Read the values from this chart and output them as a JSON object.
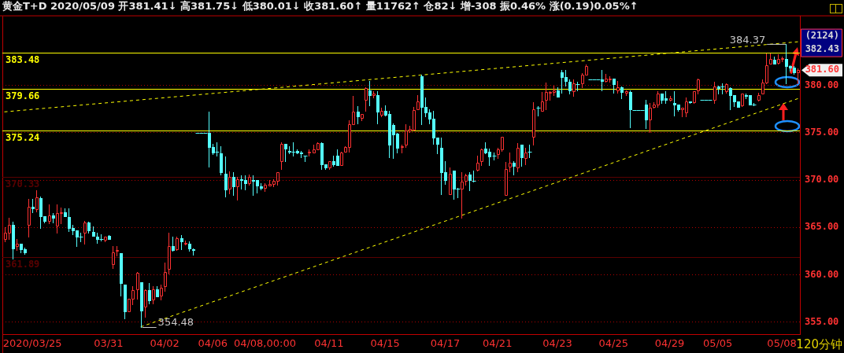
{
  "chart_data": {
    "type": "candlestick",
    "title": "黄金T+D 2020/05/09 开381.41↓ 高381.75↓ 低380.01↓ 收381.60↑ 量11762↑ 仓82↓ 增-308 振0.46% 涨(0.19)0.05%↑",
    "categories": [
      null,
      null,
      null,
      null,
      null,
      null,
      null,
      "2020/03/25",
      null,
      null,
      null,
      null,
      null,
      null,
      null,
      null,
      null,
      null,
      null,
      null,
      null,
      null,
      null,
      null,
      null,
      null,
      "03/31",
      null,
      null,
      null,
      null,
      null,
      null,
      null,
      null,
      null,
      null,
      null,
      null,
      null,
      "04/02",
      null,
      null,
      null,
      null,
      null,
      null,
      null,
      null,
      null,
      null,
      null,
      "04/06",
      null,
      null,
      null,
      null,
      null,
      null,
      null,
      null,
      null,
      null,
      null,
      null,
      "04/08,00:00",
      null,
      null,
      null,
      null,
      null,
      null,
      null,
      null,
      null,
      null,
      null,
      null,
      null,
      null,
      null,
      "04/11",
      null,
      null,
      null,
      null,
      null,
      null,
      null,
      null,
      null,
      null,
      null,
      null,
      null,
      "04/15",
      null,
      null,
      null,
      null,
      null,
      null,
      null,
      null,
      null,
      null,
      null,
      null,
      null,
      null,
      "04/17",
      null,
      null,
      null,
      null,
      null,
      null,
      null,
      null,
      null,
      null,
      null,
      null,
      "04/21",
      null,
      null,
      null,
      null,
      null,
      null,
      null,
      null,
      null,
      null,
      null,
      null,
      null,
      null,
      "04/23",
      null,
      null,
      null,
      null,
      null,
      null,
      null,
      null,
      null,
      null,
      null,
      null,
      null,
      "04/25",
      null,
      null,
      null,
      null,
      null,
      null,
      null,
      null,
      null,
      null,
      null,
      null,
      null,
      "04/29",
      null,
      null,
      null,
      null,
      null,
      null,
      null,
      null,
      null,
      null,
      null,
      "05/05",
      null,
      null,
      null,
      null,
      null,
      null,
      null,
      null,
      null,
      null,
      null,
      null,
      null,
      null,
      null,
      "05/08",
      null,
      null,
      null,
      null
    ],
    "ohlc": [
      [
        363.8,
        365.0,
        363.5,
        364.4
      ],
      [
        364.4,
        366.0,
        363.8,
        365.3
      ],
      [
        365.3,
        365.6,
        361.7,
        362.8
      ],
      [
        363.0,
        363.8,
        362.6,
        363.3
      ],
      [
        363.3,
        363.3,
        362.4,
        362.7
      ],
      [
        362.7,
        362.9,
        362.2,
        362.4
      ],
      [
        365.3,
        368.0,
        364.0,
        367.2
      ],
      [
        367.2,
        368.0,
        366.6,
        367.0
      ],
      [
        366.9,
        368.9,
        366.7,
        368.2
      ],
      [
        368.1,
        368.3,
        364.9,
        366.2
      ],
      [
        366.2,
        366.2,
        365.5,
        365.7
      ],
      [
        365.7,
        367.4,
        365.4,
        366.3
      ],
      [
        366.3,
        366.5,
        365.5,
        366.0
      ],
      [
        365.2,
        367.4,
        364.4,
        366.5
      ],
      [
        366.5,
        367.1,
        365.4,
        366.6
      ],
      [
        366.6,
        367.0,
        366.2,
        366.2
      ],
      [
        366.1,
        367.0,
        364.6,
        364.9
      ],
      [
        364.9,
        365.3,
        364.3,
        364.7
      ],
      [
        364.7,
        364.7,
        363.0,
        364.0
      ],
      [
        364.0,
        364.4,
        363.5,
        364.0
      ],
      [
        364.4,
        365.7,
        363.3,
        365.5
      ],
      [
        365.5,
        365.6,
        364.4,
        364.7
      ],
      [
        364.5,
        365.1,
        364.1,
        364.1
      ],
      [
        364.0,
        364.4,
        363.4,
        363.8
      ],
      [
        363.8,
        364.3,
        363.6,
        363.8
      ],
      [
        363.7,
        364.0,
        363.5,
        364.0
      ],
      [
        364.1,
        364.2,
        363.8,
        363.8
      ],
      [
        361.1,
        363.0,
        360.7,
        362.4
      ],
      [
        362.5,
        363.0,
        362.0,
        362.6
      ],
      [
        362.3,
        362.3,
        357.8,
        359.1
      ],
      [
        359.0,
        359.0,
        355.4,
        356.1
      ],
      [
        356.1,
        357.5,
        356.1,
        357.5
      ],
      [
        357.5,
        358.8,
        356.9,
        358.4
      ],
      [
        358.5,
        360.3,
        357.5,
        360.2
      ],
      [
        359.2,
        359.2,
        354.48,
        356.2
      ],
      [
        356.6,
        358.5,
        355.6,
        358.4
      ],
      [
        358.4,
        359.1,
        357.0,
        357.3
      ],
      [
        357.4,
        358.8,
        357.0,
        358.5
      ],
      [
        358.5,
        358.8,
        357.7,
        357.7
      ],
      [
        357.8,
        359.0,
        357.4,
        358.6
      ],
      [
        358.8,
        361.3,
        358.3,
        360.3
      ],
      [
        360.6,
        364.4,
        360.1,
        363.0
      ],
      [
        363.0,
        364.0,
        362.5,
        362.6
      ],
      [
        362.7,
        364.0,
        362.6,
        363.9
      ],
      [
        363.9,
        364.2,
        362.7,
        363.5
      ],
      [
        363.3,
        363.6,
        363.2,
        363.4
      ],
      [
        363.3,
        363.5,
        362.5,
        362.8
      ],
      [
        362.7,
        362.8,
        362.1,
        362.6
      ],
      [
        375.0,
        375.0,
        375.0,
        375.0
      ],
      [
        375.0,
        375.0,
        375.0,
        375.0
      ],
      [
        375.0,
        375.0,
        375.0,
        375.0
      ],
      [
        375.0,
        377.2,
        371.4,
        373.5
      ],
      [
        373.5,
        373.8,
        372.7,
        372.9
      ],
      [
        373.0,
        374.0,
        372.6,
        373.0
      ],
      [
        372.8,
        373.6,
        370.6,
        370.8
      ],
      [
        370.7,
        372.5,
        368.3,
        369.0
      ],
      [
        369.1,
        370.9,
        368.6,
        370.3
      ],
      [
        370.3,
        370.8,
        368.4,
        369.3
      ],
      [
        369.3,
        370.3,
        367.9,
        370.1
      ],
      [
        370.1,
        370.5,
        369.1,
        370.0
      ],
      [
        370.0,
        370.5,
        369.0,
        369.7
      ],
      [
        369.7,
        370.6,
        369.5,
        370.3
      ],
      [
        370.0,
        370.5,
        368.4,
        369.9
      ],
      [
        370.0,
        370.0,
        368.7,
        369.4
      ],
      [
        369.3,
        369.7,
        369.0,
        369.2
      ],
      [
        369.2,
        369.7,
        368.8,
        369.5
      ],
      [
        369.4,
        370.0,
        369.4,
        369.6
      ],
      [
        369.6,
        370.1,
        369.3,
        369.9
      ],
      [
        369.9,
        370.8,
        369.5,
        370.8
      ],
      [
        372.0,
        374.0,
        371.2,
        373.8
      ],
      [
        373.8,
        373.8,
        372.0,
        373.3
      ],
      [
        373.1,
        373.6,
        372.8,
        373.0
      ],
      [
        373.0,
        374.0,
        372.6,
        373.0
      ],
      [
        373.1,
        373.2,
        372.8,
        372.9
      ],
      [
        372.9,
        373.1,
        372.4,
        372.8
      ],
      [
        372.6,
        372.6,
        372.0,
        372.6
      ],
      [
        372.9,
        373.2,
        372.6,
        373.0
      ],
      [
        372.9,
        373.7,
        372.9,
        373.2
      ],
      [
        373.2,
        374.0,
        373.2,
        373.9
      ],
      [
        373.9,
        374.0,
        371.2,
        371.7
      ],
      [
        371.7,
        371.7,
        371.2,
        371.3
      ],
      [
        371.3,
        372.0,
        371.2,
        372.0
      ],
      [
        372.0,
        372.6,
        371.5,
        371.7
      ],
      [
        372.6,
        373.2,
        371.6,
        371.6
      ],
      [
        371.6,
        373.0,
        371.6,
        372.9
      ],
      [
        373.0,
        373.6,
        373.0,
        373.5
      ],
      [
        373.5,
        376.3,
        373.0,
        375.9
      ],
      [
        375.9,
        378.9,
        375.9,
        377.2
      ],
      [
        377.2,
        377.8,
        376.0,
        376.7
      ],
      [
        376.6,
        377.0,
        376.3,
        377.0
      ],
      [
        378.5,
        379.8,
        377.3,
        379.7
      ],
      [
        379.5,
        380.5,
        377.9,
        379.0
      ],
      [
        379.0,
        379.4,
        378.7,
        379.1
      ],
      [
        379.0,
        379.4,
        376.0,
        377.2
      ],
      [
        376.9,
        377.6,
        376.7,
        377.3
      ],
      [
        377.3,
        377.9,
        376.8,
        376.9
      ],
      [
        377.0,
        377.3,
        372.4,
        373.7
      ],
      [
        375.8,
        376.0,
        372.3,
        374.8
      ],
      [
        374.9,
        375.0,
        372.9,
        373.4
      ],
      [
        373.5,
        373.7,
        372.9,
        373.6
      ],
      [
        373.7,
        375.9,
        373.5,
        375.2
      ],
      [
        375.2,
        375.7,
        375.1,
        375.4
      ],
      [
        375.3,
        377.7,
        375.2,
        377.4
      ],
      [
        377.5,
        379.0,
        377.5,
        378.3
      ],
      [
        381.0,
        381.1,
        375.9,
        377.7
      ],
      [
        377.7,
        378.7,
        376.7,
        377.1
      ],
      [
        377.1,
        377.5,
        376.0,
        376.5
      ],
      [
        376.5,
        377.3,
        373.8,
        374.5
      ],
      [
        374.5,
        374.5,
        372.8,
        373.8
      ],
      [
        373.4,
        374.5,
        368.5,
        370.8
      ],
      [
        370.8,
        372.0,
        369.6,
        370.0
      ],
      [
        368.5,
        371.3,
        368.5,
        370.7
      ],
      [
        371.0,
        371.0,
        368.0,
        369.1
      ],
      [
        369.1,
        369.2,
        368.2,
        369.1
      ],
      [
        369.1,
        370.8,
        366.0,
        369.8
      ],
      [
        369.9,
        370.7,
        369.5,
        370.5
      ],
      [
        370.6,
        370.8,
        368.9,
        370.0
      ],
      [
        369.9,
        371.0,
        369.8,
        369.9
      ],
      [
        371.1,
        372.6,
        371.0,
        371.8
      ],
      [
        372.0,
        373.3,
        371.6,
        373.2
      ],
      [
        373.3,
        374.0,
        372.8,
        372.9
      ],
      [
        373.0,
        373.3,
        371.6,
        372.5
      ],
      [
        372.6,
        372.9,
        372.2,
        372.6
      ],
      [
        372.7,
        373.4,
        372.3,
        373.2
      ],
      [
        373.2,
        374.6,
        373.1,
        374.6
      ],
      [
        368.4,
        371.9,
        368.4,
        371.2
      ],
      [
        371.4,
        372.9,
        370.9,
        371.8
      ],
      [
        371.8,
        372.0,
        370.6,
        371.5
      ],
      [
        371.3,
        373.9,
        370.9,
        373.4
      ],
      [
        373.7,
        373.7,
        371.5,
        372.4
      ],
      [
        372.3,
        373.4,
        371.7,
        372.9
      ],
      [
        373.0,
        373.7,
        372.4,
        373.0
      ],
      [
        374.6,
        378.2,
        373.7,
        377.5
      ],
      [
        377.6,
        377.8,
        376.8,
        377.6
      ],
      [
        377.3,
        379.3,
        377.3,
        378.3
      ],
      [
        378.5,
        380.3,
        377.5,
        379.3
      ],
      [
        379.2,
        379.4,
        378.5,
        379.3
      ],
      [
        379.3,
        380.0,
        379.0,
        379.5
      ],
      [
        379.5,
        379.8,
        378.8,
        378.8
      ],
      [
        381.4,
        381.6,
        379.2,
        380.9
      ],
      [
        380.9,
        381.6,
        380.0,
        380.5
      ],
      [
        380.4,
        380.6,
        379.1,
        379.5
      ],
      [
        379.4,
        380.6,
        378.9,
        380.2
      ],
      [
        380.1,
        380.4,
        379.5,
        380.1
      ],
      [
        380.2,
        381.3,
        379.8,
        381.1
      ],
      [
        381.1,
        382.2,
        381.1,
        382.0
      ],
      [
        380.6,
        380.6,
        380.6,
        380.6
      ],
      [
        380.6,
        380.6,
        380.6,
        380.6
      ],
      [
        380.6,
        380.6,
        380.6,
        380.6
      ],
      [
        380.6,
        381.6,
        379.5,
        380.5
      ],
      [
        380.5,
        381.2,
        380.4,
        380.7
      ],
      [
        380.6,
        381.0,
        380.4,
        380.7
      ],
      [
        380.7,
        380.7,
        379.2,
        380.1
      ],
      [
        379.5,
        380.5,
        379.2,
        379.8
      ],
      [
        379.8,
        379.9,
        378.6,
        379.3
      ],
      [
        379.2,
        379.5,
        379.0,
        379.4
      ],
      [
        379.3,
        379.5,
        375.6,
        377.5
      ],
      [
        377.4,
        377.4,
        377.4,
        377.4
      ],
      [
        377.4,
        377.4,
        377.4,
        377.4
      ],
      [
        377.4,
        377.4,
        377.4,
        377.4
      ],
      [
        378.0,
        378.5,
        375.5,
        376.4
      ],
      [
        376.4,
        378.1,
        375.1,
        377.6
      ],
      [
        377.7,
        378.2,
        377.6,
        378.0
      ],
      [
        378.0,
        379.4,
        377.7,
        379.1
      ],
      [
        379.1,
        379.1,
        378.1,
        378.5
      ],
      [
        378.6,
        379.4,
        378.1,
        378.5
      ],
      [
        378.5,
        378.9,
        378.4,
        378.6
      ],
      [
        378.1,
        379.4,
        376.8,
        378.0
      ],
      [
        378.0,
        378.0,
        377.3,
        377.5
      ],
      [
        377.5,
        377.6,
        376.7,
        377.6
      ],
      [
        377.1,
        378.7,
        376.7,
        378.3
      ],
      [
        378.3,
        378.3,
        378.1,
        378.2
      ],
      [
        378.2,
        379.4,
        378.1,
        379.4
      ],
      [
        379.5,
        380.7,
        379.1,
        380.6
      ],
      [
        378.5,
        378.5,
        378.5,
        378.5
      ],
      [
        378.5,
        378.5,
        378.5,
        378.5
      ],
      [
        378.5,
        378.5,
        378.5,
        378.5
      ],
      [
        378.5,
        380.4,
        378.1,
        379.9
      ],
      [
        379.9,
        380.0,
        379.1,
        379.7
      ],
      [
        379.9,
        380.2,
        379.1,
        379.9
      ],
      [
        379.4,
        380.2,
        379.2,
        380.1
      ],
      [
        379.7,
        379.8,
        377.5,
        379.0
      ],
      [
        379.0,
        379.0,
        377.8,
        378.3
      ],
      [
        378.3,
        378.3,
        377.7,
        377.7
      ],
      [
        377.9,
        379.1,
        377.8,
        379.1
      ],
      [
        379.0,
        379.1,
        378.6,
        378.9
      ],
      [
        379.0,
        379.0,
        378.0,
        378.0
      ],
      [
        378.0,
        378.1,
        377.9,
        378.0
      ],
      [
        378.5,
        379.2,
        378.4,
        379.0
      ],
      [
        379.1,
        380.6,
        379.1,
        380.3
      ],
      [
        380.3,
        383.4,
        380.2,
        382.1
      ],
      [
        382.3,
        383.4,
        382.3,
        382.8
      ],
      [
        382.7,
        383.0,
        382.3,
        382.3
      ],
      [
        382.4,
        383.3,
        382.3,
        382.8
      ],
      [
        382.8,
        383.0,
        382.5,
        382.9
      ],
      [
        382.8,
        384.37,
        380.2,
        382.0
      ],
      [
        382.0,
        382.1,
        381.5,
        381.9
      ],
      [
        381.9,
        382.0,
        381.2,
        381.4
      ],
      [
        381.4,
        381.8,
        380.2,
        381.6
      ]
    ],
    "series": [
      {
        "type": "line",
        "color": "#ffff00",
        "line_style": "dashed",
        "marker": "none",
        "values": [
          377.2,
          null,
          null,
          null,
          null,
          null,
          null,
          null,
          null,
          null,
          null,
          null,
          null,
          null,
          null,
          null,
          null,
          null,
          null,
          null,
          null,
          null,
          null,
          null,
          null,
          null,
          null,
          null,
          null,
          null,
          null,
          null,
          null,
          null,
          null,
          null,
          null,
          null,
          null,
          null,
          null,
          null,
          null,
          null,
          null,
          null,
          null,
          null,
          null,
          null,
          null,
          null,
          null,
          null,
          null,
          null,
          null,
          null,
          null,
          null,
          null,
          null,
          null,
          null,
          null,
          null,
          null,
          null,
          null,
          null,
          null,
          null,
          null,
          null,
          null,
          null,
          null,
          null,
          null,
          null,
          null,
          null,
          null,
          null,
          null,
          null,
          null,
          null,
          null,
          null,
          null,
          null,
          null,
          null,
          null,
          null,
          null,
          null,
          null,
          null,
          null,
          null,
          null,
          null,
          null,
          null,
          null,
          null,
          null,
          null,
          null,
          null,
          null,
          null,
          null,
          null,
          null,
          null,
          null,
          null,
          null,
          null,
          null,
          null,
          null,
          null,
          null,
          null,
          null,
          null,
          null,
          null,
          null,
          null,
          null,
          null,
          null,
          null,
          null,
          null,
          null,
          null,
          null,
          null,
          null,
          null,
          null,
          null,
          null,
          null,
          null,
          null,
          null,
          null,
          null,
          null,
          null,
          null,
          null,
          null,
          null,
          null,
          null,
          null,
          null,
          null,
          null,
          null,
          null,
          null,
          null,
          null,
          null,
          null,
          null,
          null,
          null,
          null,
          null,
          null,
          null,
          null,
          null,
          null,
          null,
          null,
          null,
          null,
          null,
          null,
          null,
          null,
          null,
          null,
          null,
          null,
          null,
          null,
          384.6
        ]
      },
      {
        "type": "line",
        "color": "#ffff00",
        "line_style": "dashed",
        "marker": "none",
        "values": [
          null,
          null,
          null,
          null,
          null,
          null,
          null,
          null,
          null,
          null,
          null,
          null,
          null,
          null,
          null,
          null,
          null,
          null,
          null,
          null,
          null,
          null,
          null,
          null,
          null,
          null,
          null,
          null,
          null,
          null,
          null,
          null,
          null,
          null,
          354.5,
          null,
          null,
          null,
          null,
          null,
          null,
          null,
          null,
          null,
          null,
          null,
          null,
          null,
          null,
          null,
          null,
          null,
          null,
          null,
          null,
          null,
          null,
          null,
          null,
          null,
          null,
          null,
          null,
          null,
          null,
          null,
          null,
          null,
          null,
          null,
          null,
          null,
          null,
          null,
          null,
          null,
          null,
          null,
          null,
          null,
          null,
          null,
          null,
          null,
          null,
          null,
          null,
          null,
          null,
          null,
          null,
          null,
          null,
          null,
          null,
          null,
          null,
          null,
          null,
          null,
          null,
          null,
          null,
          null,
          null,
          null,
          null,
          null,
          null,
          null,
          null,
          null,
          null,
          null,
          null,
          null,
          null,
          null,
          null,
          null,
          null,
          null,
          null,
          null,
          null,
          null,
          null,
          null,
          null,
          null,
          null,
          null,
          null,
          null,
          null,
          null,
          null,
          null,
          null,
          null,
          null,
          null,
          null,
          null,
          null,
          null,
          null,
          null,
          null,
          null,
          null,
          null,
          null,
          null,
          null,
          null,
          null,
          null,
          null,
          null,
          null,
          null,
          null,
          null,
          null,
          null,
          null,
          null,
          null,
          null,
          null,
          null,
          null,
          null,
          null,
          null,
          null,
          null,
          null,
          null,
          null,
          null,
          null,
          null,
          null,
          null,
          null,
          null,
          null,
          null,
          null,
          null,
          null,
          null,
          null,
          null,
          null,
          null,
          378.6
        ]
      }
    ],
    "ylim": [
      353.7,
      387.3
    ],
    "yticks": [
      {
        "value": 355,
        "label": "355.00"
      },
      {
        "value": 360,
        "label": "360.00"
      },
      {
        "value": 365,
        "label": "365.00"
      },
      {
        "value": 370,
        "label": "370.00"
      },
      {
        "value": 375,
        "label": "375.00"
      },
      {
        "value": 380,
        "label": "380.00"
      }
    ],
    "grid": "y",
    "ref_lines": [
      {
        "axis": "y",
        "value": 383.48,
        "label": "383.48",
        "color": "#ffff00"
      },
      {
        "axis": "y",
        "value": 379.66,
        "label": "379.66",
        "color": "#ffff00"
      },
      {
        "axis": "y",
        "value": 375.24,
        "label": "375.24",
        "color": "#ffff00"
      },
      {
        "axis": "y",
        "value": 370.33,
        "label": "370.33",
        "color": "#5a0000"
      },
      {
        "axis": "y",
        "value": 361.89,
        "label": "361.89",
        "color": "#5a0000"
      }
    ],
    "annotations": [
      "120分钟",
      "(2124)",
      "382.43",
      "354.48",
      "381.60",
      {
        "text": "384.37",
        "y": 384.37
      }
    ]
  }
}
